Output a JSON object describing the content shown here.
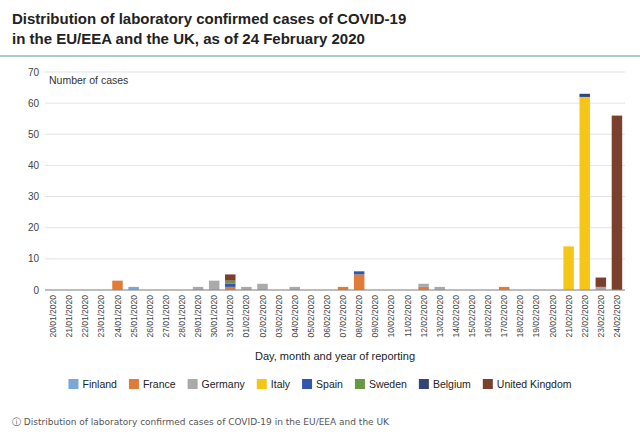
{
  "chart_data": {
    "type": "bar",
    "stacked": true,
    "title": "Distribution of laboratory confirmed cases of COVID-19",
    "subtitle": "in the EU/EEA and the UK, as of 24 February 2020",
    "xlabel": "Day, month and year of reporting",
    "ylabel": "Number of cases",
    "annotations": [
      "ⓘ  Distribution of laboratory confirmed cases of COVID-19 in the EU/EEA and the UK"
    ],
    "categories": [
      "20/01/2020",
      "21/01/2020",
      "22/01/2020",
      "23/01/2020",
      "24/01/2020",
      "25/01/2020",
      "26/01/2020",
      "27/01/2020",
      "28/01/2020",
      "29/01/2020",
      "30/01/2020",
      "31/01/2020",
      "01/02/2020",
      "02/02/2020",
      "03/02/2020",
      "04/02/2020",
      "05/02/2020",
      "06/02/2020",
      "07/02/2020",
      "08/02/2020",
      "09/02/2020",
      "10/02/2020",
      "11/02/2020",
      "12/02/2020",
      "13/02/2020",
      "14/02/2020",
      "15/02/2020",
      "16/02/2020",
      "17/02/2020",
      "18/02/2020",
      "19/02/2020",
      "20/02/2020",
      "21/02/2020",
      "22/02/2020",
      "23/02/2020",
      "24/02/2020"
    ],
    "series": [
      {
        "name": "Finland",
        "color": "#7ba7d4",
        "values": [
          0,
          0,
          0,
          0,
          0,
          1,
          0,
          0,
          0,
          0,
          0,
          0,
          0,
          0,
          0,
          0,
          0,
          0,
          0,
          0,
          0,
          0,
          0,
          0,
          0,
          0,
          0,
          0,
          0,
          0,
          0,
          0,
          0,
          0,
          0,
          0
        ]
      },
      {
        "name": "France",
        "color": "#e07b39",
        "values": [
          0,
          0,
          0,
          0,
          3,
          0,
          0,
          0,
          0,
          0,
          0,
          1,
          0,
          0,
          0,
          0,
          0,
          0,
          1,
          5,
          0,
          0,
          0,
          1,
          0,
          0,
          0,
          0,
          1,
          0,
          0,
          0,
          0,
          0,
          0,
          0
        ]
      },
      {
        "name": "Germany",
        "color": "#aaaaaa",
        "values": [
          0,
          0,
          0,
          0,
          0,
          0,
          0,
          0,
          0,
          1,
          3,
          0,
          1,
          2,
          0,
          1,
          0,
          0,
          0,
          0,
          0,
          0,
          0,
          1,
          1,
          0,
          0,
          0,
          0,
          0,
          0,
          0,
          0,
          0,
          1,
          0
        ]
      },
      {
        "name": "Italy",
        "color": "#f5c518",
        "values": [
          0,
          0,
          0,
          0,
          0,
          0,
          0,
          0,
          0,
          0,
          0,
          0,
          0,
          0,
          0,
          0,
          0,
          0,
          0,
          0,
          0,
          0,
          0,
          0,
          0,
          0,
          0,
          0,
          0,
          0,
          0,
          0,
          14,
          62,
          0,
          0
        ]
      },
      {
        "name": "Spain",
        "color": "#3355aa",
        "values": [
          0,
          0,
          0,
          0,
          0,
          0,
          0,
          0,
          0,
          0,
          0,
          1,
          0,
          0,
          0,
          0,
          0,
          0,
          0,
          1,
          0,
          0,
          0,
          0,
          0,
          0,
          0,
          0,
          0,
          0,
          0,
          0,
          0,
          0,
          0,
          0
        ]
      },
      {
        "name": "Sweden",
        "color": "#669944",
        "values": [
          0,
          0,
          0,
          0,
          0,
          0,
          0,
          0,
          0,
          0,
          0,
          1,
          0,
          0,
          0,
          0,
          0,
          0,
          0,
          0,
          0,
          0,
          0,
          0,
          0,
          0,
          0,
          0,
          0,
          0,
          0,
          0,
          0,
          0,
          0,
          0
        ]
      },
      {
        "name": "Belgium",
        "color": "#334477",
        "values": [
          0,
          0,
          0,
          0,
          0,
          0,
          0,
          0,
          0,
          0,
          0,
          0,
          0,
          0,
          0,
          0,
          0,
          0,
          0,
          0,
          0,
          0,
          0,
          0,
          0,
          0,
          0,
          0,
          0,
          0,
          0,
          0,
          0,
          1,
          0,
          0
        ]
      },
      {
        "name": "United Kingdom",
        "color": "#7b3f2e",
        "values": [
          0,
          0,
          0,
          0,
          0,
          0,
          0,
          0,
          0,
          0,
          0,
          2,
          0,
          0,
          0,
          0,
          0,
          0,
          0,
          0,
          0,
          0,
          0,
          0,
          0,
          0,
          0,
          0,
          0,
          0,
          0,
          0,
          0,
          0,
          3,
          56
        ]
      }
    ],
    "ylim": [
      0,
      70
    ],
    "yticks": [
      0,
      10,
      20,
      30,
      40,
      50,
      60,
      70
    ],
    "grid": true,
    "legend": "bottom"
  }
}
